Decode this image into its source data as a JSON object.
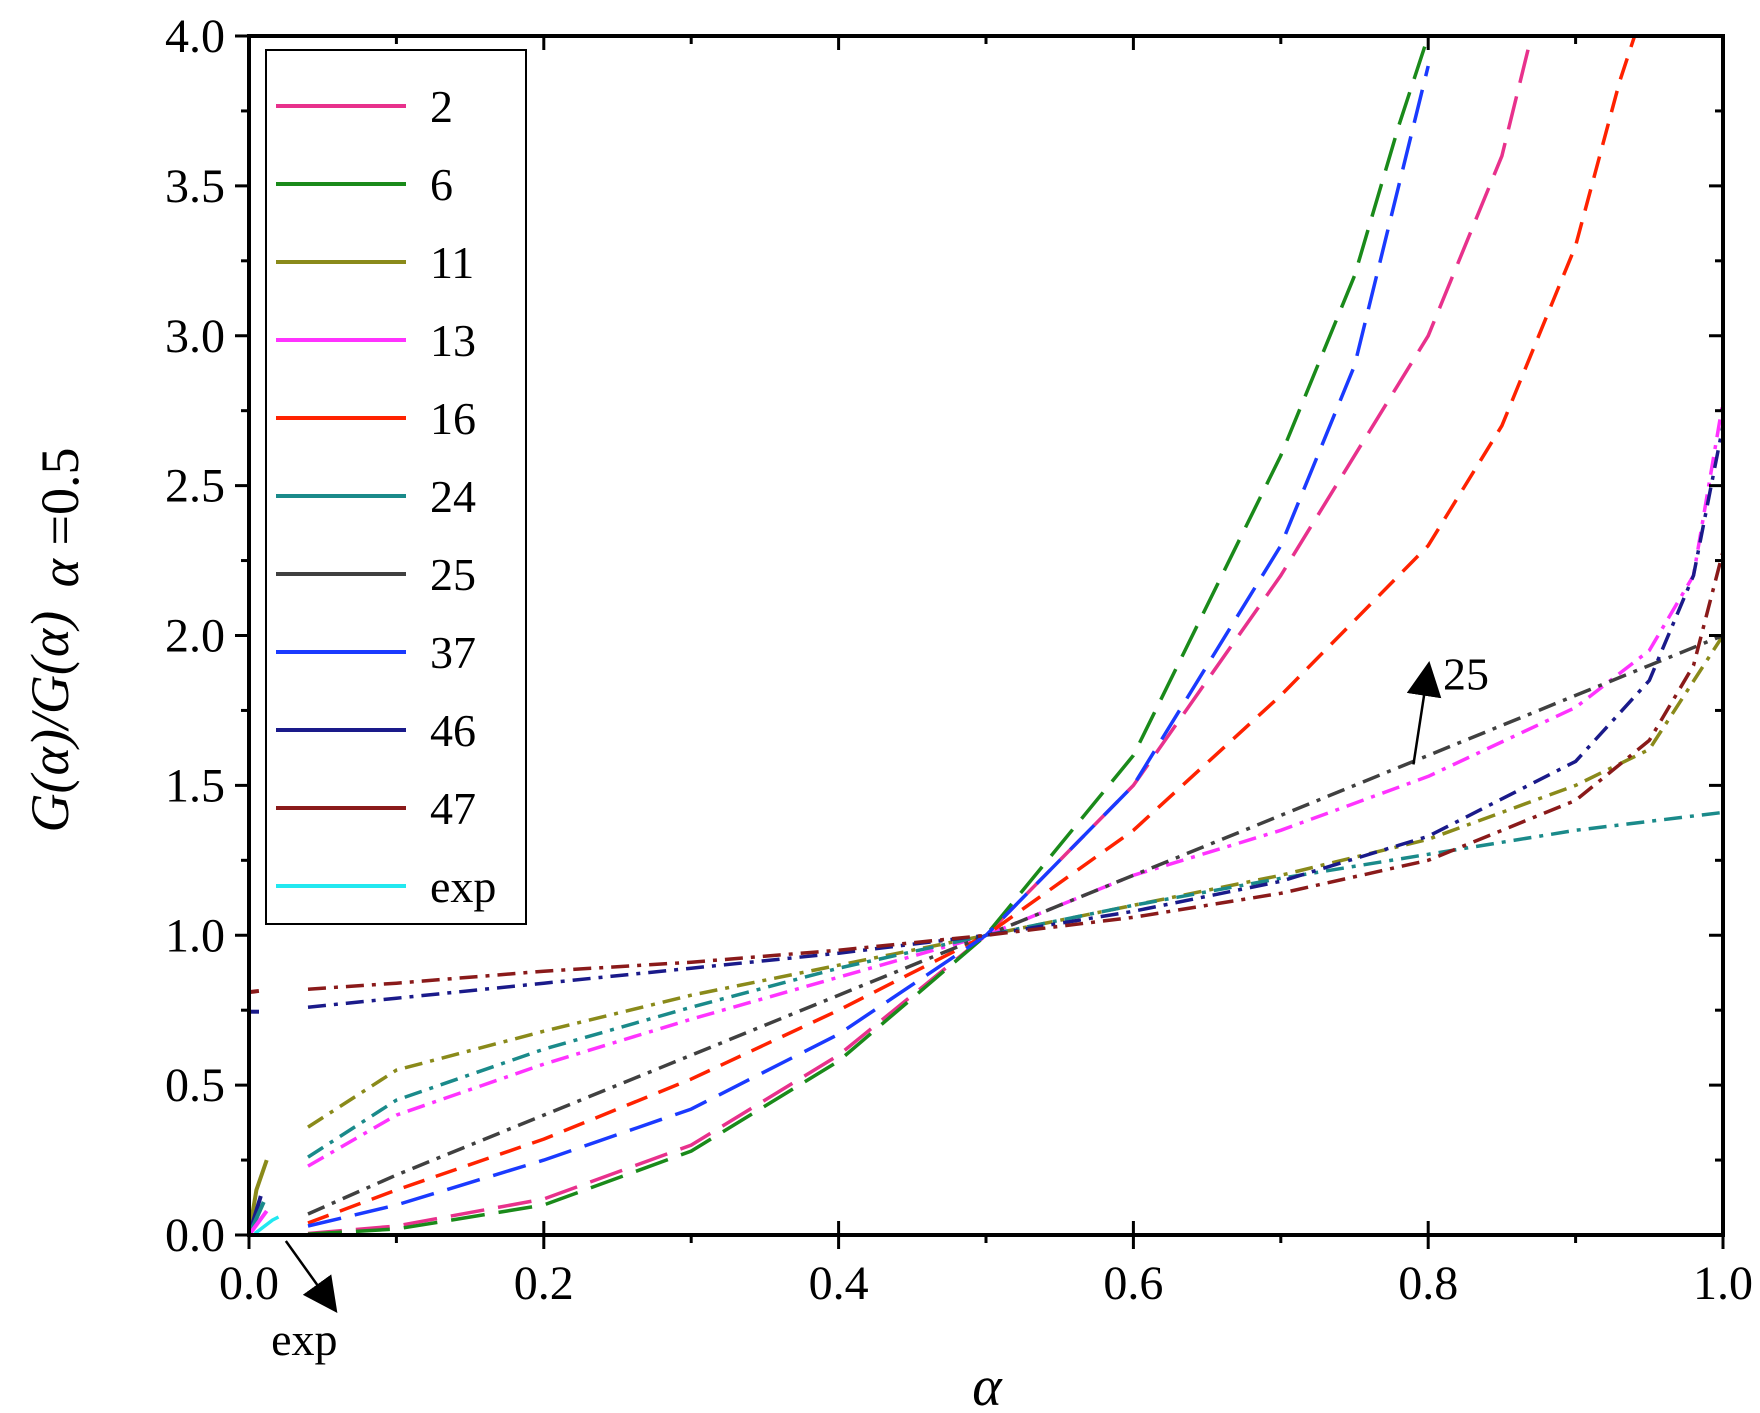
{
  "chart_data": {
    "type": "line",
    "title": "",
    "xlabel": "α",
    "ylabel": "G(α)/G(α) α=0.5",
    "ylabel_parts": {
      "num": "G(α)/G(α)",
      "sub": "α",
      "sub_value": "=0.5"
    },
    "xlim": [
      0,
      1
    ],
    "ylim": [
      0,
      4
    ],
    "x_ticks": [
      "0.0",
      "0.2",
      "0.4",
      "0.6",
      "0.8",
      "1.0"
    ],
    "y_ticks": [
      "0.0",
      "0.5",
      "1.0",
      "1.5",
      "2.0",
      "2.5",
      "3.0",
      "3.5",
      "4.0"
    ],
    "legend_position": "top-left",
    "series": [
      {
        "name": "2",
        "color": "#e8318c",
        "dash": "long",
        "x": [
          0.04,
          0.1,
          0.2,
          0.3,
          0.4,
          0.5,
          0.6,
          0.7,
          0.8,
          0.85,
          0.87
        ],
        "y": [
          0.005,
          0.03,
          0.12,
          0.3,
          0.6,
          1.0,
          1.5,
          2.2,
          3.0,
          3.6,
          4.0
        ]
      },
      {
        "name": "6",
        "color": "#1a8a1a",
        "dash": "long",
        "x": [
          0.04,
          0.1,
          0.2,
          0.3,
          0.4,
          0.5,
          0.6,
          0.7,
          0.75,
          0.78,
          0.8
        ],
        "y": [
          0.003,
          0.02,
          0.1,
          0.28,
          0.58,
          1.0,
          1.6,
          2.6,
          3.2,
          3.7,
          4.0
        ]
      },
      {
        "name": "11",
        "color": "#8a8a1a",
        "dash": "dashdot",
        "x": [
          0.04,
          0.1,
          0.2,
          0.3,
          0.4,
          0.5,
          0.6,
          0.7,
          0.8,
          0.9,
          0.95,
          1.0
        ],
        "y": [
          0.36,
          0.55,
          0.68,
          0.8,
          0.9,
          1.0,
          1.1,
          1.2,
          1.32,
          1.5,
          1.62,
          2.0
        ]
      },
      {
        "name": "13",
        "color": "#ff33ff",
        "dash": "dashdot",
        "x": [
          0.04,
          0.1,
          0.2,
          0.3,
          0.4,
          0.5,
          0.6,
          0.7,
          0.8,
          0.9,
          0.95,
          0.98,
          1.0
        ],
        "y": [
          0.23,
          0.4,
          0.57,
          0.72,
          0.86,
          1.0,
          1.2,
          1.35,
          1.53,
          1.76,
          1.95,
          2.2,
          2.78
        ]
      },
      {
        "name": "16",
        "color": "#ff2200",
        "dash": "medium",
        "x": [
          0.04,
          0.1,
          0.2,
          0.3,
          0.4,
          0.5,
          0.6,
          0.7,
          0.8,
          0.85,
          0.9,
          0.93,
          0.94
        ],
        "y": [
          0.04,
          0.15,
          0.32,
          0.52,
          0.75,
          1.0,
          1.35,
          1.8,
          2.3,
          2.7,
          3.3,
          3.85,
          4.0
        ]
      },
      {
        "name": "24",
        "color": "#1a8a8a",
        "dash": "dashdot",
        "x": [
          0.04,
          0.1,
          0.2,
          0.3,
          0.4,
          0.5,
          0.6,
          0.7,
          0.8,
          0.9,
          1.0
        ],
        "y": [
          0.26,
          0.45,
          0.62,
          0.76,
          0.89,
          1.0,
          1.1,
          1.19,
          1.27,
          1.35,
          1.41
        ]
      },
      {
        "name": "25",
        "color": "#404040",
        "dash": "dashdot",
        "x": [
          0.04,
          0.1,
          0.2,
          0.3,
          0.4,
          0.5,
          0.6,
          0.7,
          0.8,
          0.9,
          1.0
        ],
        "y": [
          0.07,
          0.2,
          0.4,
          0.6,
          0.8,
          1.0,
          1.2,
          1.4,
          1.6,
          1.8,
          2.0
        ]
      },
      {
        "name": "37",
        "color": "#1a3aff",
        "dash": "long",
        "x": [
          0.04,
          0.1,
          0.2,
          0.3,
          0.4,
          0.5,
          0.6,
          0.7,
          0.75,
          0.78,
          0.8
        ],
        "y": [
          0.03,
          0.1,
          0.25,
          0.42,
          0.67,
          1.0,
          1.5,
          2.3,
          2.9,
          3.5,
          3.9
        ]
      },
      {
        "name": "46",
        "color": "#1a1a8a",
        "dash": "dashdot",
        "x": [
          0.04,
          0.1,
          0.2,
          0.3,
          0.4,
          0.5,
          0.6,
          0.7,
          0.8,
          0.9,
          0.95,
          0.98,
          1.0
        ],
        "y": [
          0.76,
          0.79,
          0.84,
          0.89,
          0.94,
          1.0,
          1.08,
          1.18,
          1.33,
          1.58,
          1.85,
          2.2,
          2.7
        ]
      },
      {
        "name": "47",
        "color": "#8a1a1a",
        "dash": "dashdot",
        "x": [
          0.04,
          0.1,
          0.2,
          0.3,
          0.4,
          0.5,
          0.6,
          0.7,
          0.8,
          0.9,
          0.95,
          0.98,
          1.0
        ],
        "y": [
          0.82,
          0.84,
          0.88,
          0.91,
          0.95,
          1.0,
          1.06,
          1.14,
          1.25,
          1.45,
          1.65,
          1.9,
          2.28
        ]
      },
      {
        "name": "exp",
        "color": "#22e8f0",
        "dash": "solid",
        "x": [
          0.004,
          0.008,
          0.012,
          0.016,
          0.02
        ],
        "y": [
          0.005,
          0.02,
          0.035,
          0.05,
          0.06
        ]
      }
    ],
    "near_zero_fragments": [
      {
        "series": "11",
        "x": [
          0.0,
          0.005,
          0.012
        ],
        "y": [
          0.0,
          0.15,
          0.25
        ]
      },
      {
        "series": "46",
        "x": [
          0.0,
          0.008
        ],
        "y": [
          0.0,
          0.13
        ]
      },
      {
        "series": "24",
        "x": [
          0.0,
          0.01
        ],
        "y": [
          0.0,
          0.11
        ]
      },
      {
        "series": "13",
        "x": [
          0.0,
          0.012
        ],
        "y": [
          0.0,
          0.08
        ]
      },
      {
        "series": "46",
        "x": [
          0.0,
          0.008
        ],
        "y": [
          0.745,
          0.745
        ]
      },
      {
        "series": "47",
        "x": [
          0.0,
          0.008
        ],
        "y": [
          0.81,
          0.815
        ]
      }
    ],
    "annotations": [
      {
        "text": "25",
        "points_to_series": "25",
        "at": [
          0.8,
          2.0
        ]
      },
      {
        "text": "exp",
        "points_to_series": "exp",
        "at": [
          0.05,
          -0.45
        ]
      }
    ]
  }
}
